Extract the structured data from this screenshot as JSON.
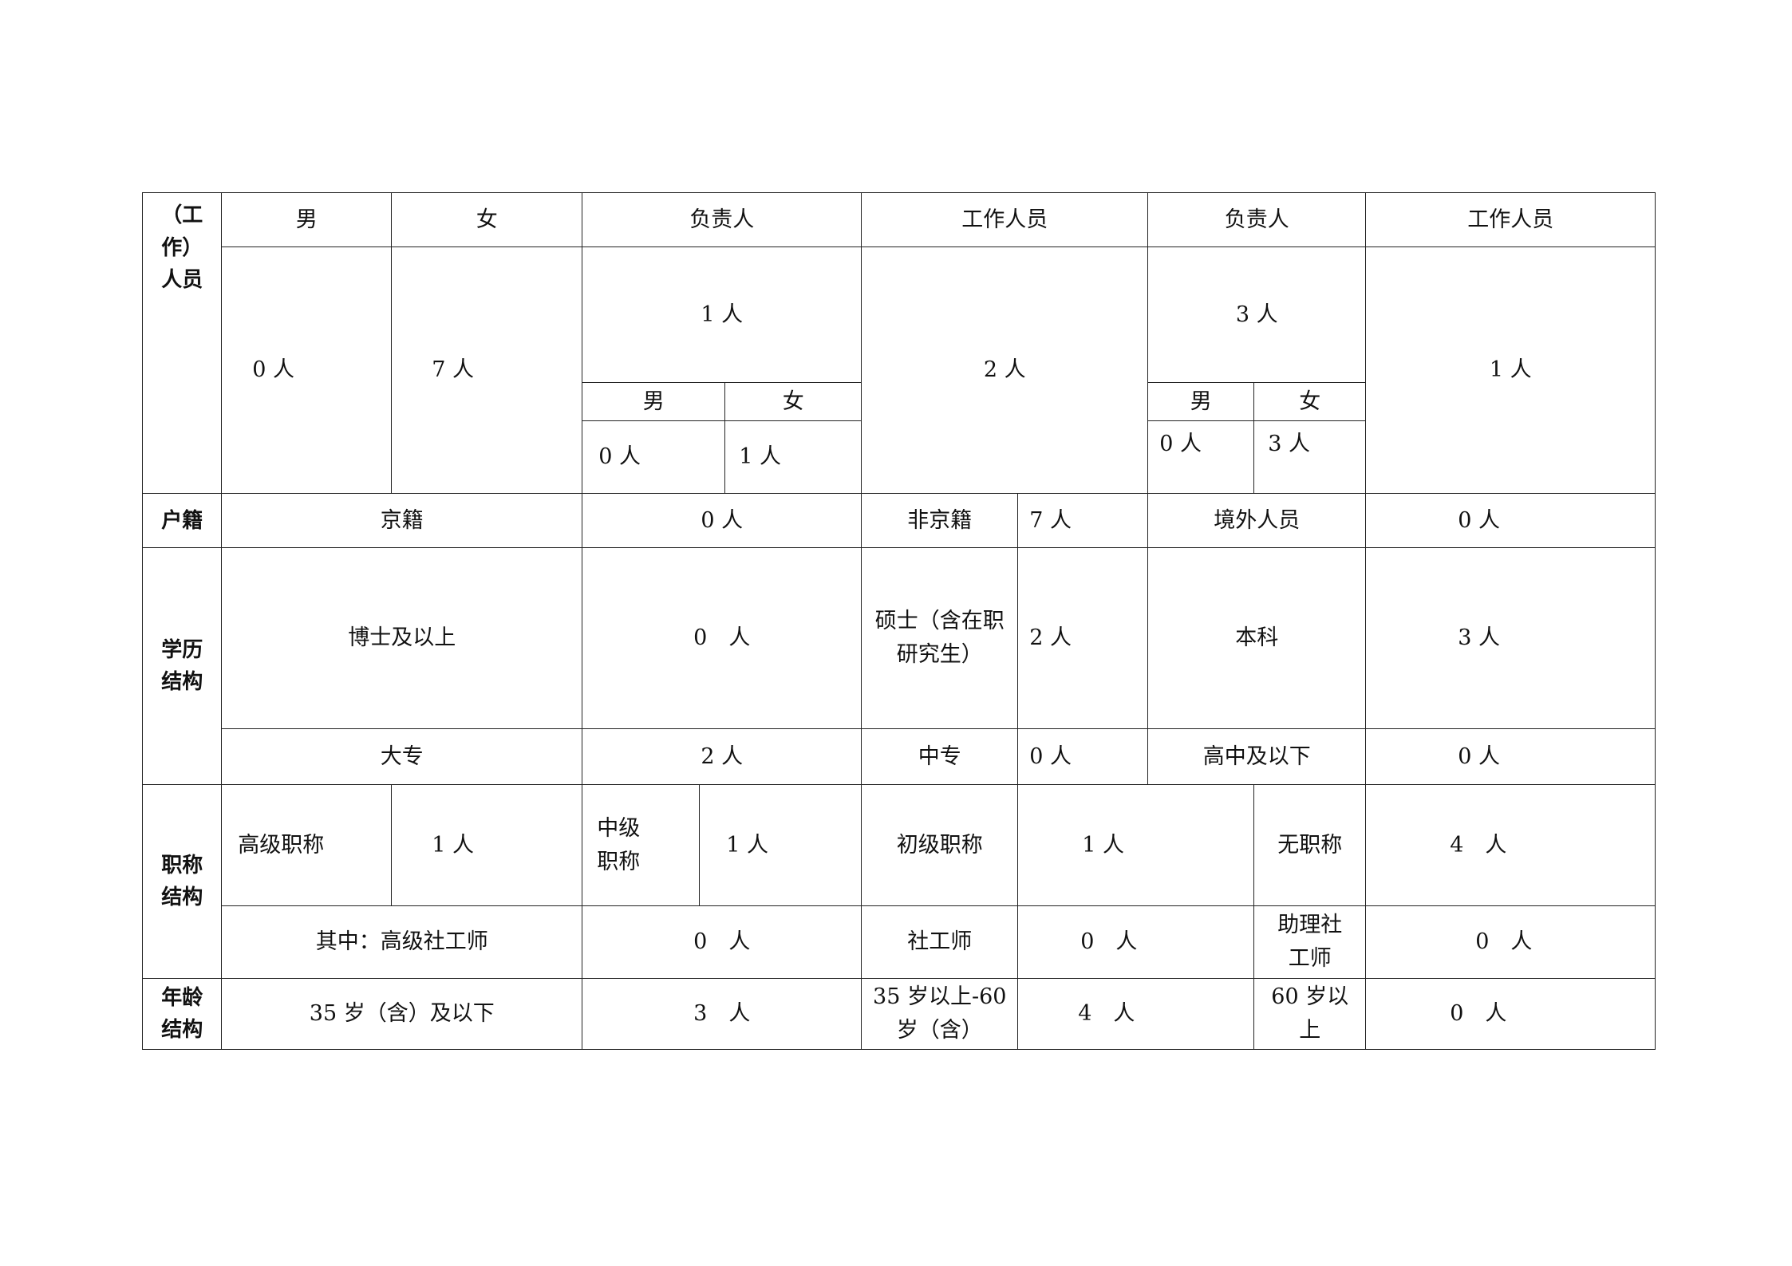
{
  "staff": {
    "label": "（工\n作）\n人员",
    "male": "男",
    "female": "女",
    "leader_a": "负责人",
    "worker_a": "工作人员",
    "leader_b": "负责人",
    "worker_b": "工作人员",
    "male_count": "0 人",
    "female_count": "7 人",
    "leader_a_count": "1 人",
    "leader_a_male": "男",
    "leader_a_female": "女",
    "leader_a_male_count": "0 人",
    "leader_a_female_count": "1 人",
    "worker_a_count": "2 人",
    "leader_b_count": "3 人",
    "leader_b_male": "男",
    "leader_b_female": "女",
    "leader_b_male_count": "0 人",
    "leader_b_female_count": "3 人",
    "worker_b_count": "1 人"
  },
  "hukou": {
    "label": "户籍",
    "beijing": "京籍",
    "beijing_count": "0 人",
    "non_beijing": "非京籍",
    "non_beijing_count": "7 人",
    "overseas": "境外人员",
    "overseas_count": "0 人"
  },
  "education": {
    "label": "学历\n结构",
    "doctor": "博士及以上",
    "doctor_count": "0　人",
    "master": "硕士（含在职\n研究生）",
    "master_count": "2 人",
    "bachelor": "本科",
    "bachelor_count": "3 人",
    "college": "大专",
    "college_count": "2 人",
    "secondary": "中专",
    "secondary_count": "0 人",
    "high_school": "高中及以下",
    "high_school_count": "0 人"
  },
  "title": {
    "label": "职称\n结构",
    "senior": "高级职称",
    "senior_count": "1 人",
    "middle": "中级\n职称",
    "middle_count": "1 人",
    "junior": "初级职称",
    "junior_count": "1 人",
    "none": "无职称",
    "none_count": "4　人",
    "senior_social": "其中：高级社工师",
    "senior_social_count": "0　人",
    "social": "社工师",
    "social_count": "0　人",
    "assistant_social": "助理社\n工师",
    "assistant_social_count": "0　人"
  },
  "age": {
    "label": "年龄\n结构",
    "under35": "35 岁（含）及以下",
    "under35_count": "3　人",
    "mid": "35 岁以上-60\n岁（含）",
    "mid_count": "4　人",
    "over60": "60 岁以\n上",
    "over60_count": "0　人"
  }
}
